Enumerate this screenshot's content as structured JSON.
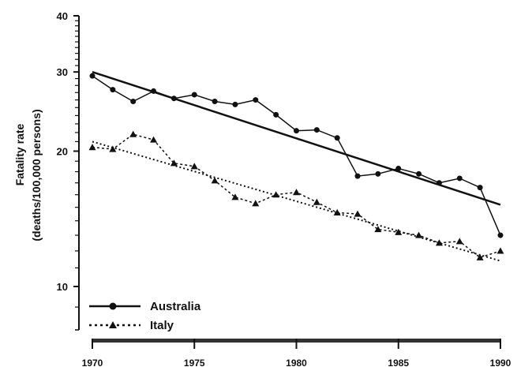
{
  "chart_data": {
    "type": "line",
    "ylabel": "Fatality rate",
    "ylabel_units": "(deaths/100,000 persons)",
    "y_scale": "log",
    "ylim": [
      8,
      40
    ],
    "xlim": [
      1970,
      1990
    ],
    "x_ticks": [
      1970,
      1975,
      1980,
      1985,
      1990
    ],
    "x_tick_labels": [
      "1970",
      "1975",
      "1980",
      "1985",
      "1990"
    ],
    "y_ticks": [
      10,
      20,
      30,
      40
    ],
    "y_tick_labels": [
      "10",
      "20",
      "30",
      "40"
    ],
    "grid": false,
    "legend_position": "bottom-left",
    "series": [
      {
        "name": "Australia",
        "marker": "circle",
        "line_style": "solid",
        "x": [
          1970,
          1971,
          1972,
          1973,
          1974,
          1975,
          1976,
          1977,
          1978,
          1979,
          1980,
          1981,
          1982,
          1983,
          1984,
          1985,
          1986,
          1987,
          1988,
          1989,
          1990
        ],
        "values": [
          29.4,
          27.4,
          25.8,
          27.2,
          26.2,
          26.7,
          25.8,
          25.4,
          26.0,
          24.1,
          22.2,
          22.3,
          21.4,
          17.6,
          17.8,
          18.3,
          17.8,
          17.0,
          17.4,
          16.6,
          13.0
        ],
        "trend": {
          "x": [
            1970,
            1990
          ],
          "values": [
            30.0,
            15.2
          ]
        }
      },
      {
        "name": "Italy",
        "marker": "triangle",
        "line_style": "dotted",
        "x": [
          1970,
          1971,
          1972,
          1973,
          1974,
          1975,
          1976,
          1977,
          1978,
          1979,
          1980,
          1981,
          1982,
          1983,
          1984,
          1985,
          1986,
          1987,
          1988,
          1989,
          1990
        ],
        "values": [
          20.4,
          20.2,
          21.8,
          21.2,
          18.8,
          18.5,
          17.2,
          15.8,
          15.3,
          16.0,
          16.2,
          15.4,
          14.6,
          14.5,
          13.4,
          13.2,
          13.0,
          12.5,
          12.6,
          11.6,
          12.0
        ],
        "trend": {
          "x": [
            1970,
            1990
          ],
          "values": [
            21.0,
            11.4
          ]
        }
      }
    ]
  }
}
